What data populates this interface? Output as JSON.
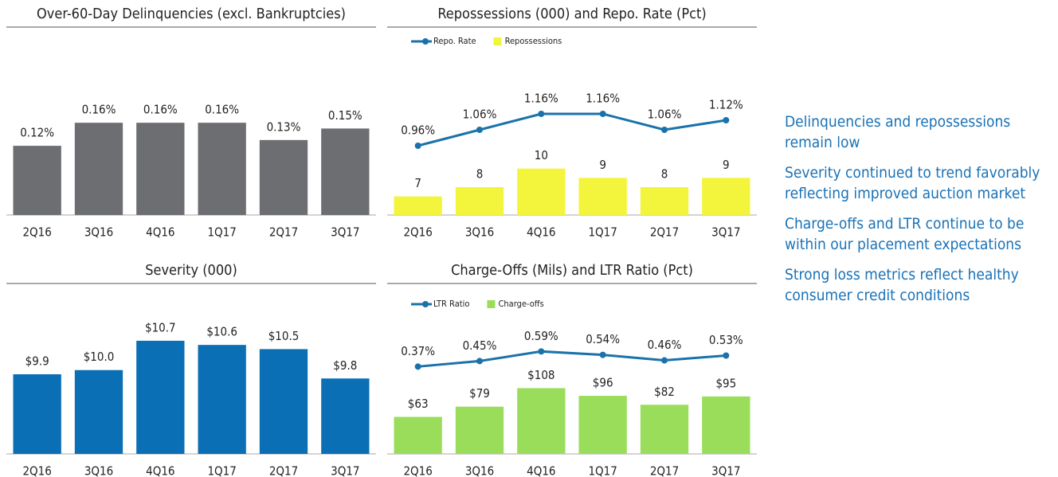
{
  "chart_data": [
    {
      "type": "bar",
      "title": "Over-60-Day Delinquencies (excl. Bankruptcies)",
      "categories": [
        "2Q16",
        "3Q16",
        "4Q16",
        "1Q17",
        "2Q17",
        "3Q17"
      ],
      "values": [
        0.12,
        0.16,
        0.16,
        0.16,
        0.13,
        0.15
      ],
      "value_labels": [
        "0.12%",
        "0.16%",
        "0.16%",
        "0.16%",
        "0.13%",
        "0.15%"
      ],
      "color": "#6d6e71",
      "ylim": [
        0,
        0.29
      ]
    },
    {
      "type": "combo",
      "title": "Repossessions (000) and Repo. Rate (Pct)",
      "categories": [
        "2Q16",
        "3Q16",
        "4Q16",
        "1Q17",
        "2Q17",
        "3Q17"
      ],
      "series": [
        {
          "name": "Repo. Rate",
          "type": "line",
          "axis": "y2",
          "color": "#1a72aa",
          "values": [
            0.96,
            1.06,
            1.16,
            1.16,
            1.06,
            1.12
          ],
          "value_labels": [
            "0.96%",
            "1.06%",
            "1.16%",
            "1.16%",
            "1.06%",
            "1.12%"
          ]
        },
        {
          "name": "Repossessions",
          "type": "bar",
          "color": "#f3f43c",
          "values": [
            7,
            8,
            10,
            9,
            8,
            9
          ]
        }
      ],
      "ylim": [
        5,
        20
      ],
      "y2lim": [
        0.525,
        1.4
      ]
    },
    {
      "type": "bar",
      "title": "Severity (000)",
      "categories": [
        "2Q16",
        "3Q16",
        "4Q16",
        "1Q17",
        "2Q17",
        "3Q17"
      ],
      "values": [
        9.9,
        10.0,
        10.7,
        10.6,
        10.5,
        9.8
      ],
      "value_labels": [
        "$9.9",
        "$10.0",
        "$10.7",
        "$10.6",
        "$10.5",
        "$9.8"
      ],
      "color": "#0a6fb4",
      "ylim": [
        8,
        11.8
      ]
    },
    {
      "type": "combo",
      "title": "Charge-Offs (Mils) and LTR Ratio (Pct)",
      "categories": [
        "2Q16",
        "3Q16",
        "4Q16",
        "1Q17",
        "2Q17",
        "3Q17"
      ],
      "series": [
        {
          "name": "LTR Ratio",
          "type": "line",
          "axis": "y2",
          "color": "#1a72aa",
          "values": [
            0.37,
            0.45,
            0.59,
            0.54,
            0.46,
            0.53
          ],
          "value_labels": [
            "0.37%",
            "0.45%",
            "0.59%",
            "0.54%",
            "0.46%",
            "0.53%"
          ]
        },
        {
          "name": "Charge-offs",
          "type": "bar",
          "color": "#9add5a",
          "values": [
            63,
            79,
            108,
            96,
            82,
            95
          ],
          "value_labels": [
            "$63",
            "$79",
            "$108",
            "$96",
            "$82",
            "$95"
          ]
        }
      ],
      "ylim": [
        5,
        242
      ],
      "y2lim": [
        -0.9,
        1.3
      ]
    }
  ],
  "bullets": [
    "Delinquencies and repossessions remain low",
    "Severity continued to trend favorably reflecting improved auction market",
    "Charge-offs and LTR continue to be within our placement expectations",
    "Strong loss metrics reflect healthy consumer credit conditions"
  ]
}
